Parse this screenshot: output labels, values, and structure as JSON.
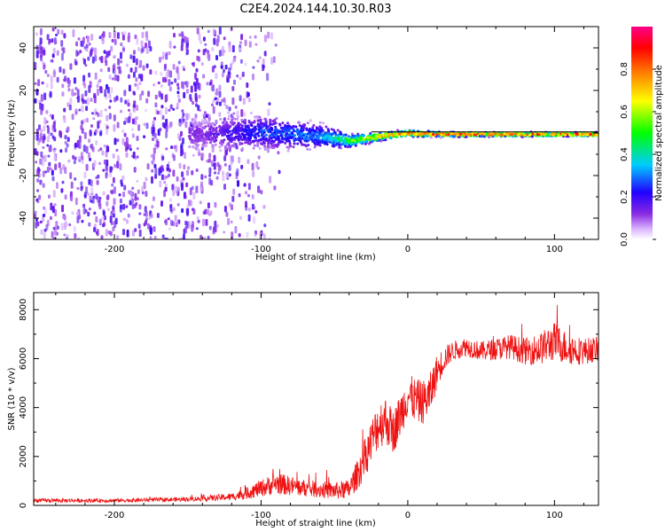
{
  "figure": {
    "title": "C2E4.2024.144.10.30.R03"
  },
  "chart_data": [
    {
      "type": "heatmap",
      "title": "C2E4.2024.144.10.30.R03",
      "xlabel": "Height of straight line (km)",
      "ylabel": "Frequency (Hz)",
      "xlim": [
        -255,
        130
      ],
      "ylim": [
        -50,
        50
      ],
      "x_ticks": [
        -200,
        -100,
        0,
        100
      ],
      "y_ticks": [
        -40,
        -20,
        0,
        20,
        40
      ],
      "colorbar": {
        "label": "Normalized spectral amplitude",
        "range": [
          0,
          1
        ],
        "ticks": [
          0.0,
          0.2,
          0.4,
          0.6,
          0.8
        ],
        "tick_labels": [
          "0.0",
          "0.2",
          "0.4",
          "0.6",
          "0.8"
        ],
        "colormap": [
          "#ffffff",
          "#8a2be2",
          "#0000ff",
          "#00ffff",
          "#00ff00",
          "#ffff00",
          "#ff8000",
          "#ff0000",
          "#ff00aa"
        ]
      },
      "noise_region": {
        "x_range": [
          -255,
          -125
        ],
        "freq_range": [
          -50,
          50
        ],
        "amplitude": 0.05
      },
      "trace": {
        "description_points_x": [
          -140,
          -100,
          -60,
          -40,
          -20,
          0,
          20,
          60,
          100,
          130
        ],
        "center_freq": [
          0,
          1,
          -1,
          -3,
          -1,
          0.5,
          0,
          0,
          0,
          0
        ],
        "freq_spread": [
          8,
          8,
          6,
          3,
          2,
          1.5,
          1.2,
          1,
          1,
          1
        ],
        "amplitude": [
          0.15,
          0.3,
          0.35,
          0.6,
          0.8,
          0.9,
          0.95,
          0.95,
          0.95,
          0.95
        ]
      },
      "reference_line_freq": 0.5
    },
    {
      "type": "line",
      "xlabel": "Height of straight line (km)",
      "ylabel": "SNR (10 * v/v)",
      "xlim": [
        -255,
        130
      ],
      "ylim": [
        0,
        8700
      ],
      "x_ticks": [
        -200,
        -100,
        0,
        100
      ],
      "y_ticks": [
        0,
        2000,
        4000,
        6000,
        8000
      ],
      "color": "#ee1111",
      "series": [
        {
          "x": [
            -255,
            -200,
            -150,
            -120,
            -110,
            -100,
            -90,
            -80,
            -70,
            -60,
            -50,
            -40,
            -35,
            -30,
            -25,
            -20,
            -15,
            -10,
            -5,
            0,
            5,
            10,
            15,
            20,
            25,
            30,
            40,
            50,
            60,
            70,
            80,
            90,
            100,
            110,
            120,
            130
          ],
          "values": [
            200,
            200,
            250,
            350,
            500,
            700,
            900,
            800,
            700,
            650,
            600,
            650,
            1200,
            1800,
            2600,
            3300,
            3500,
            3000,
            3700,
            4500,
            4300,
            4200,
            4500,
            5500,
            6000,
            6300,
            6500,
            6300,
            6400,
            6500,
            6300,
            6400,
            6700,
            6400,
            6300,
            6400
          ],
          "noise": [
            80,
            80,
            90,
            150,
            250,
            350,
            450,
            400,
            350,
            350,
            350,
            400,
            600,
            800,
            900,
            1000,
            1000,
            900,
            900,
            900,
            900,
            900,
            900,
            700,
            500,
            400,
            400,
            400,
            450,
            500,
            550,
            650,
            800,
            650,
            550,
            500
          ]
        }
      ]
    }
  ]
}
